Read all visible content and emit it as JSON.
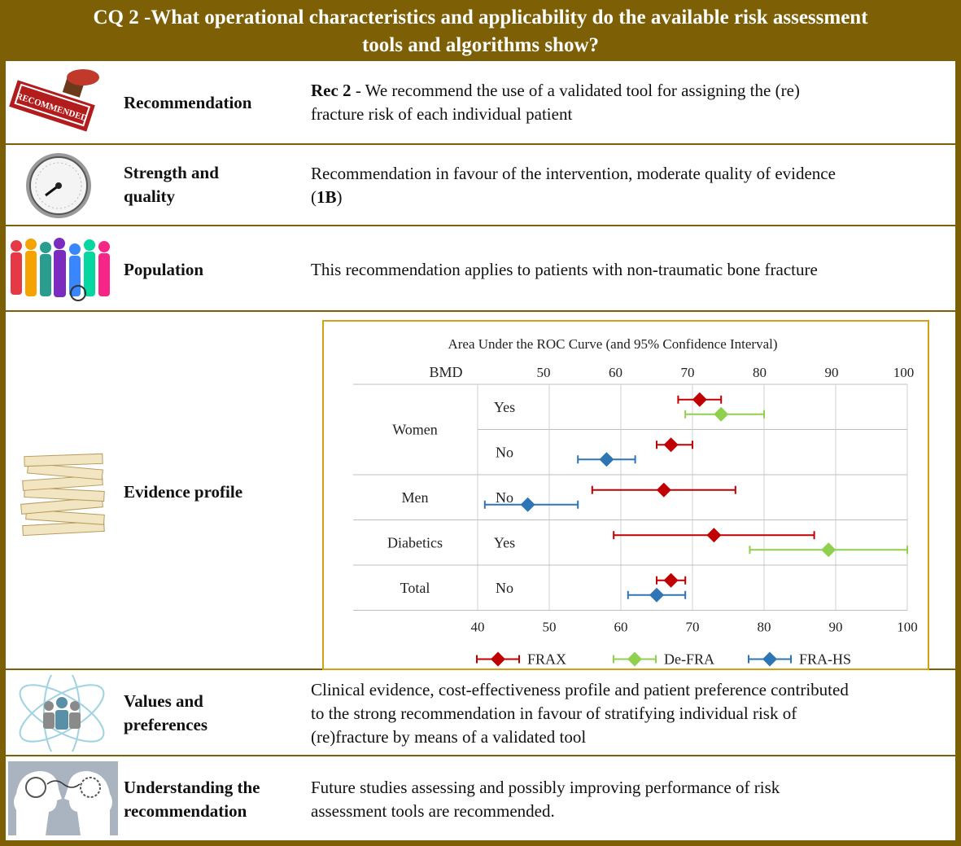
{
  "header": {
    "title_line1": "CQ 2 -What operational characteristics and applicability do the available risk assessment",
    "title_line2": "tools and algorithms show?"
  },
  "rows": {
    "recommendation": {
      "label": "Recommendation",
      "rec_prefix": "Rec 2",
      "text_line1": " - We recommend the use of a validated tool for assigning the (re)",
      "text_line2": "fracture risk of each individual patient",
      "icon_text": "RECOMMENDED"
    },
    "strength": {
      "label_line1": "Strength and",
      "label_line2": "quality",
      "text_line1": "Recommendation in favour of the intervention, moderate quality of evidence",
      "text_open": "(",
      "grade": "1B",
      "text_close": ")"
    },
    "population": {
      "label": "Population",
      "text": "This recommendation applies to patients with non-traumatic bone fracture"
    },
    "evidence": {
      "label": "Evidence profile"
    },
    "values": {
      "label_line1": "Values and",
      "label_line2": "preferences",
      "text_line1": "Clinical evidence, cost-effectiveness profile and patient preference contributed",
      "text_line2": "to the strong recommendation in favour of stratifying individual risk of",
      "text_line3": "(re)fracture by means of a validated tool"
    },
    "understanding": {
      "label_line1": "Understanding the",
      "label_line2": "recommendation",
      "text_line1": "Future studies assessing and possibly improving performance of risk",
      "text_line2": "assessment tools are recommended."
    }
  },
  "colors": {
    "frame": "#7d5f06",
    "chart_border": "#d4a017",
    "frax": "#c00000",
    "defra": "#8fd14f",
    "frahs": "#2e75b6"
  },
  "chart_data": {
    "type": "forest",
    "title": "Area Under the ROC Curve (and 95% Confidence Interval)",
    "bmd_header": "BMD",
    "xlim": [
      40,
      100
    ],
    "top_ticks": [
      50,
      60,
      70,
      80,
      90,
      100
    ],
    "bottom_ticks": [
      40,
      50,
      60,
      70,
      80,
      90,
      100
    ],
    "groups": [
      {
        "name": "Women",
        "rows": [
          {
            "bmd": "Yes",
            "points": [
              {
                "series": "FRAX",
                "value": 71,
                "lo": 68,
                "hi": 74
              },
              {
                "series": "De-FRA",
                "value": 74,
                "lo": 69,
                "hi": 80
              }
            ]
          },
          {
            "bmd": "No",
            "points": [
              {
                "series": "FRAX",
                "value": 67,
                "lo": 65,
                "hi": 70
              },
              {
                "series": "FRA-HS",
                "value": 58,
                "lo": 54,
                "hi": 62
              }
            ]
          }
        ]
      },
      {
        "name": "Men",
        "rows": [
          {
            "bmd": "No",
            "points": [
              {
                "series": "FRAX",
                "value": 66,
                "lo": 56,
                "hi": 76
              },
              {
                "series": "FRA-HS",
                "value": 47,
                "lo": 41,
                "hi": 54
              }
            ]
          }
        ]
      },
      {
        "name": "Diabetics",
        "rows": [
          {
            "bmd": "Yes",
            "points": [
              {
                "series": "FRAX",
                "value": 73,
                "lo": 59,
                "hi": 87
              },
              {
                "series": "De-FRA",
                "value": 89,
                "lo": 78,
                "hi": 100
              }
            ]
          }
        ]
      },
      {
        "name": "Total",
        "rows": [
          {
            "bmd": "No",
            "points": [
              {
                "series": "FRAX",
                "value": 67,
                "lo": 65,
                "hi": 69
              },
              {
                "series": "FRA-HS",
                "value": 65,
                "lo": 61,
                "hi": 69
              }
            ]
          }
        ]
      }
    ],
    "legend": [
      {
        "name": "FRAX",
        "color": "#c00000"
      },
      {
        "name": "De-FRA",
        "color": "#8fd14f"
      },
      {
        "name": "FRA-HS",
        "color": "#2e75b6"
      }
    ]
  }
}
